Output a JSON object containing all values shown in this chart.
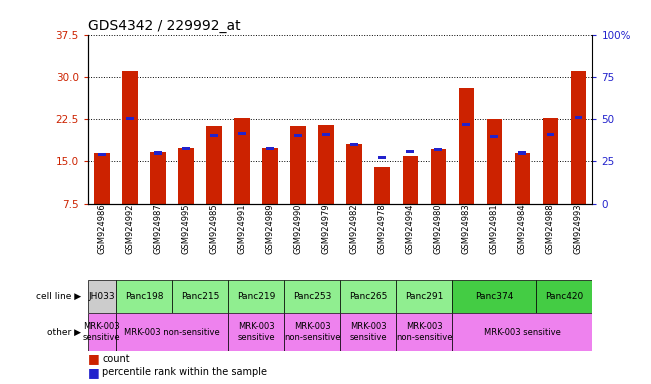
{
  "title": "GDS4342 / 229992_at",
  "samples": [
    "GSM924986",
    "GSM924992",
    "GSM924987",
    "GSM924995",
    "GSM924985",
    "GSM924991",
    "GSM924989",
    "GSM924990",
    "GSM924979",
    "GSM924982",
    "GSM924978",
    "GSM924994",
    "GSM924980",
    "GSM924983",
    "GSM924981",
    "GSM924984",
    "GSM924988",
    "GSM924993"
  ],
  "red_values": [
    16.5,
    31.0,
    16.6,
    17.3,
    21.2,
    22.6,
    17.3,
    21.3,
    21.5,
    18.1,
    13.9,
    15.9,
    17.1,
    28.0,
    22.5,
    16.5,
    22.7,
    31.0
  ],
  "blue_values": [
    15.9,
    22.4,
    16.2,
    17.0,
    19.3,
    19.7,
    17.0,
    19.3,
    19.5,
    17.7,
    15.4,
    16.5,
    16.8,
    21.3,
    19.2,
    16.2,
    19.4,
    22.5
  ],
  "ylim_left": [
    7.5,
    37.5
  ],
  "yticks_left": [
    7.5,
    15.0,
    22.5,
    30.0,
    37.5
  ],
  "ylim_right": [
    0,
    100
  ],
  "yticks_right": [
    0,
    25,
    50,
    75,
    100
  ],
  "bar_color_red": "#cc2200",
  "bar_color_blue": "#2222cc",
  "bar_width": 0.55,
  "cell_groups": [
    {
      "label": "JH033",
      "start": 0,
      "end": 1,
      "color": "#cccccc"
    },
    {
      "label": "Panc198",
      "start": 1,
      "end": 3,
      "color": "#90ee90"
    },
    {
      "label": "Panc215",
      "start": 3,
      "end": 5,
      "color": "#90ee90"
    },
    {
      "label": "Panc219",
      "start": 5,
      "end": 7,
      "color": "#90ee90"
    },
    {
      "label": "Panc253",
      "start": 7,
      "end": 9,
      "color": "#90ee90"
    },
    {
      "label": "Panc265",
      "start": 9,
      "end": 11,
      "color": "#90ee90"
    },
    {
      "label": "Panc291",
      "start": 11,
      "end": 13,
      "color": "#90ee90"
    },
    {
      "label": "Panc374",
      "start": 13,
      "end": 16,
      "color": "#44cc44"
    },
    {
      "label": "Panc420",
      "start": 16,
      "end": 18,
      "color": "#44cc44"
    }
  ],
  "other_groups": [
    {
      "label": "MRK-003\nsensitive",
      "start": 0,
      "end": 1,
      "color": "#ee82ee"
    },
    {
      "label": "MRK-003 non-sensitive",
      "start": 1,
      "end": 5,
      "color": "#ee82ee"
    },
    {
      "label": "MRK-003\nsensitive",
      "start": 5,
      "end": 7,
      "color": "#ee82ee"
    },
    {
      "label": "MRK-003\nnon-sensitive",
      "start": 7,
      "end": 9,
      "color": "#ee82ee"
    },
    {
      "label": "MRK-003\nsensitive",
      "start": 9,
      "end": 11,
      "color": "#ee82ee"
    },
    {
      "label": "MRK-003\nnon-sensitive",
      "start": 11,
      "end": 13,
      "color": "#ee82ee"
    },
    {
      "label": "MRK-003 sensitive",
      "start": 13,
      "end": 18,
      "color": "#ee82ee"
    }
  ]
}
